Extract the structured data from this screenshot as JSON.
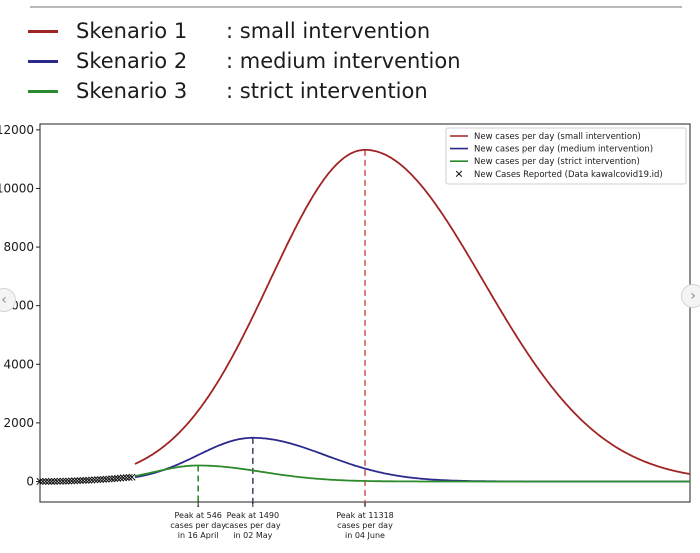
{
  "scenario_legend": [
    {
      "name": "Skenario 1",
      "desc": ": small intervention",
      "color": "#a02424"
    },
    {
      "name": "Skenario 2",
      "desc": ": medium intervention",
      "color": "#2a2a8c"
    },
    {
      "name": "Skenario 3",
      "desc": ": strict intervention",
      "color": "#2c8a2c"
    }
  ],
  "chart_data": {
    "type": "line",
    "ylim": [
      -700,
      12200
    ],
    "xlim": [
      0,
      226
    ],
    "yticks": [
      0,
      2000,
      4000,
      6000,
      8000,
      10000,
      12000
    ],
    "ytick_labels": [
      "0",
      "2000",
      "4000",
      "6000",
      "8000",
      "10000",
      "12000"
    ],
    "grid": false,
    "legend_position": "top-right",
    "series": [
      {
        "key": "small",
        "name": "New cases per day (small intervention)",
        "color": "#a02424",
        "peak_x": 113,
        "peak_y": 11318,
        "sigma_left": 33,
        "sigma_right": 41
      },
      {
        "key": "medium",
        "name": "New cases per day (medium intervention)",
        "color": "#2a2a8c",
        "peak_x": 74,
        "peak_y": 1490,
        "sigma_left": 19,
        "sigma_right": 25
      },
      {
        "key": "strict",
        "name": "New cases per day (strict intervention)",
        "color": "#2c8a2c",
        "peak_x": 55,
        "peak_y": 546,
        "sigma_left": 15,
        "sigma_right": 22
      }
    ],
    "reported": {
      "name": "New Cases Reported (Data kawalcovid19.id)",
      "x": [
        0,
        1,
        2,
        3,
        4,
        5,
        6,
        7,
        8,
        9,
        10,
        11,
        12,
        13,
        14,
        15,
        16,
        17,
        18,
        19,
        20,
        21,
        22,
        23,
        24,
        25,
        26,
        27,
        28,
        29,
        30,
        31,
        32
      ],
      "y": [
        0,
        0,
        0,
        2,
        2,
        3,
        5,
        8,
        10,
        12,
        15,
        18,
        22,
        28,
        32,
        36,
        40,
        45,
        50,
        56,
        60,
        66,
        72,
        78,
        85,
        92,
        100,
        108,
        115,
        125,
        132,
        140,
        148
      ]
    },
    "annotations": [
      {
        "series": "strict",
        "x": 55,
        "color": "#2c8a2c",
        "lines": [
          "Peak at 546",
          "cases per day",
          "in 16 April"
        ]
      },
      {
        "series": "medium",
        "x": 74,
        "color": "#4a4a6a",
        "lines": [
          "Peak at 1490",
          "cases per day",
          "in 02 May"
        ]
      },
      {
        "series": "small",
        "x": 113,
        "color": "#d95f5f",
        "lines": [
          "Peak at 11318",
          "cases per day",
          "in 04 June"
        ]
      }
    ]
  }
}
